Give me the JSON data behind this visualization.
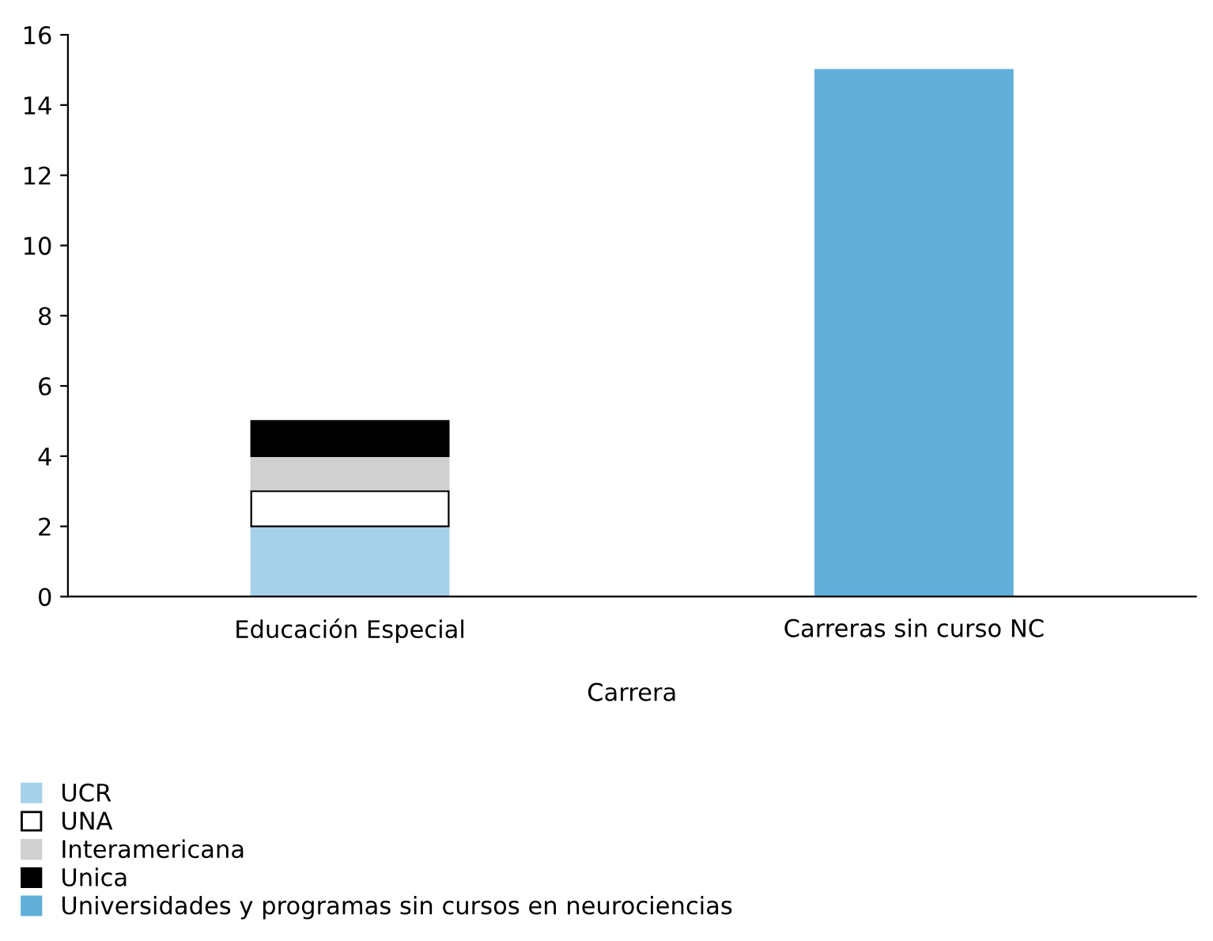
{
  "chart_data": {
    "type": "bar",
    "stacked": true,
    "xlabel": "Carrera",
    "categories": [
      "Educación Especial",
      "Carreras sin curso NC"
    ],
    "series": [
      {
        "name": "UCR",
        "color": "#a6d1ea",
        "values": [
          2,
          null
        ]
      },
      {
        "name": "UNA",
        "color": "#ffffff",
        "values": [
          1,
          null
        ]
      },
      {
        "name": "Interamericana",
        "color": "#d0d0d0",
        "values": [
          1,
          null
        ]
      },
      {
        "name": "Unica",
        "color": "#000000",
        "values": [
          1,
          null
        ]
      },
      {
        "name": "Universidades y programas sin cursos en neurociencias",
        "color": "#62b0da",
        "values": [
          null,
          15
        ]
      }
    ],
    "ylim": [
      0,
      16
    ],
    "yticks": [
      0,
      2,
      4,
      6,
      8,
      10,
      12,
      14,
      16
    ],
    "grid": false,
    "legend": "bottom"
  }
}
